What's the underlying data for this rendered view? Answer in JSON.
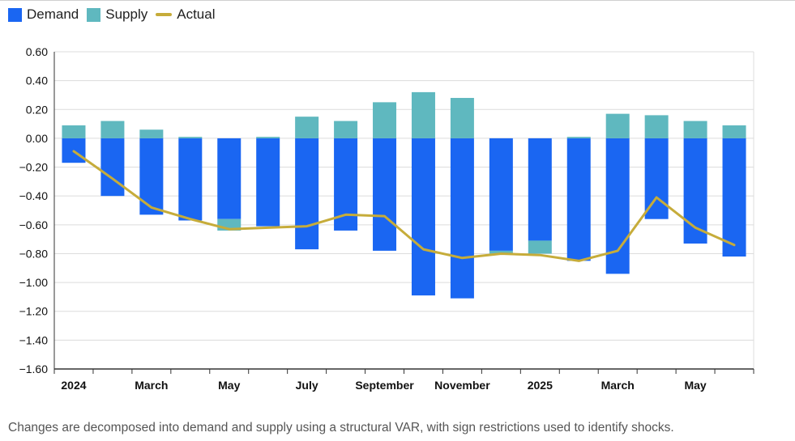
{
  "legend": {
    "demand": "Demand",
    "supply": "Supply",
    "actual": "Actual"
  },
  "colors": {
    "demand": "#1a66f2",
    "supply": "#5fb8bf",
    "actual": "#c6ac3a",
    "grid": "#dcdcdc",
    "axis": "#333333"
  },
  "caption": "Changes are decomposed into demand and supply using a structural VAR, with sign restrictions used to identify shocks.",
  "chart_data": {
    "type": "bar",
    "stacked": true,
    "ylim": [
      -1.6,
      0.6
    ],
    "yticks": [
      "0.60",
      "0.40",
      "0.20",
      "0.00",
      "−0.20",
      "−0.40",
      "−0.60",
      "−0.80",
      "−1.00",
      "−1.20",
      "−1.40",
      "−1.60"
    ],
    "ytick_values": [
      0.6,
      0.4,
      0.2,
      0.0,
      -0.2,
      -0.4,
      -0.6,
      -0.8,
      -1.0,
      -1.2,
      -1.4,
      -1.6
    ],
    "x_tick_labels": [
      {
        "index": 0,
        "label": "2024"
      },
      {
        "index": 2,
        "label": "March"
      },
      {
        "index": 4,
        "label": "May"
      },
      {
        "index": 6,
        "label": "July"
      },
      {
        "index": 8,
        "label": "September"
      },
      {
        "index": 10,
        "label": "November"
      },
      {
        "index": 12,
        "label": "2025"
      },
      {
        "index": 14,
        "label": "March"
      },
      {
        "index": 16,
        "label": "May"
      }
    ],
    "series": [
      {
        "name": "Demand",
        "values": [
          -0.17,
          -0.4,
          -0.53,
          -0.57,
          -0.56,
          -0.61,
          -0.77,
          -0.64,
          -0.78,
          -1.09,
          -1.11,
          -0.78,
          -0.71,
          -0.85,
          -0.94,
          -0.56,
          -0.73,
          -0.82
        ]
      },
      {
        "name": "Supply",
        "values": [
          0.09,
          0.12,
          0.06,
          0.01,
          -0.08,
          0.01,
          0.15,
          0.12,
          0.25,
          0.32,
          0.28,
          -0.02,
          -0.09,
          0.01,
          0.17,
          0.16,
          0.12,
          0.09
        ]
      },
      {
        "name": "Actual",
        "type": "line",
        "values": [
          -0.09,
          -0.28,
          -0.48,
          -0.56,
          -0.63,
          -0.62,
          -0.61,
          -0.53,
          -0.54,
          -0.77,
          -0.83,
          -0.8,
          -0.81,
          -0.85,
          -0.78,
          -0.41,
          -0.62,
          -0.74
        ]
      }
    ],
    "title": "",
    "xlabel": "",
    "ylabel": ""
  }
}
